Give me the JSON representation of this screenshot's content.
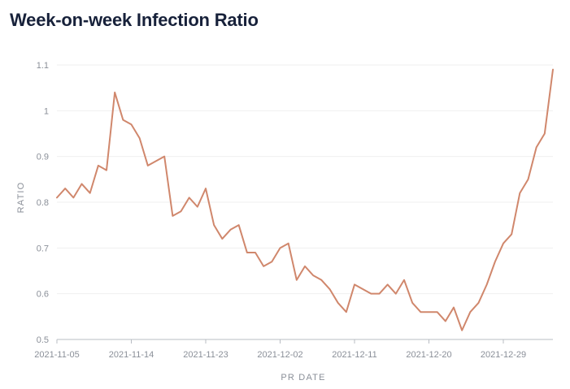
{
  "chart_data": {
    "type": "line",
    "title": "Week-on-week Infection Ratio",
    "xlabel": "PR DATE",
    "ylabel": "RATIO",
    "x_tick_labels": [
      "2021-11-05",
      "2021-11-14",
      "2021-11-23",
      "2021-12-02",
      "2021-12-11",
      "2021-12-20",
      "2021-12-29"
    ],
    "y_tick_labels": [
      "0.5",
      "0.6",
      "0.7",
      "0.8",
      "0.9",
      "1",
      "1.1"
    ],
    "ylim": [
      0.5,
      1.1
    ],
    "xlim": [
      "2021-11-05",
      "2022-01-04"
    ],
    "grid": true,
    "legend": "none",
    "colors": {
      "line": "#d0876c",
      "grid": "#efefef",
      "axis": "#b8bcc3",
      "title": "#17213a",
      "tick": "#8a8f98"
    },
    "series": [
      {
        "x": [
          "2021-11-05",
          "2021-11-06",
          "2021-11-07",
          "2021-11-08",
          "2021-11-09",
          "2021-11-10",
          "2021-11-11",
          "2021-11-12",
          "2021-11-13",
          "2021-11-14",
          "2021-11-15",
          "2021-11-16",
          "2021-11-17",
          "2021-11-18",
          "2021-11-19",
          "2021-11-20",
          "2021-11-21",
          "2021-11-22",
          "2021-11-23",
          "2021-11-24",
          "2021-11-25",
          "2021-11-26",
          "2021-11-27",
          "2021-11-28",
          "2021-11-29",
          "2021-11-30",
          "2021-12-01",
          "2021-12-02",
          "2021-12-03",
          "2021-12-04",
          "2021-12-05",
          "2021-12-06",
          "2021-12-07",
          "2021-12-08",
          "2021-12-09",
          "2021-12-10",
          "2021-12-11",
          "2021-12-12",
          "2021-12-13",
          "2021-12-14",
          "2021-12-15",
          "2021-12-16",
          "2021-12-17",
          "2021-12-18",
          "2021-12-19",
          "2021-12-20",
          "2021-12-21",
          "2021-12-22",
          "2021-12-23",
          "2021-12-24",
          "2021-12-25",
          "2021-12-26",
          "2021-12-27",
          "2021-12-28",
          "2021-12-29",
          "2021-12-30",
          "2021-12-31",
          "2022-01-01",
          "2022-01-02",
          "2022-01-03",
          "2022-01-04"
        ],
        "values": [
          0.81,
          0.83,
          0.81,
          0.84,
          0.82,
          0.88,
          0.87,
          1.04,
          0.98,
          0.97,
          0.94,
          0.88,
          0.89,
          0.9,
          0.77,
          0.78,
          0.81,
          0.79,
          0.83,
          0.75,
          0.72,
          0.74,
          0.75,
          0.69,
          0.69,
          0.66,
          0.67,
          0.7,
          0.71,
          0.63,
          0.66,
          0.64,
          0.63,
          0.61,
          0.58,
          0.56,
          0.62,
          0.61,
          0.6,
          0.6,
          0.62,
          0.6,
          0.63,
          0.58,
          0.56,
          0.56,
          0.56,
          0.54,
          0.57,
          0.52,
          0.56,
          0.58,
          0.62,
          0.67,
          0.71,
          0.73,
          0.82,
          0.85,
          0.92,
          0.95,
          1.09
        ]
      }
    ]
  }
}
